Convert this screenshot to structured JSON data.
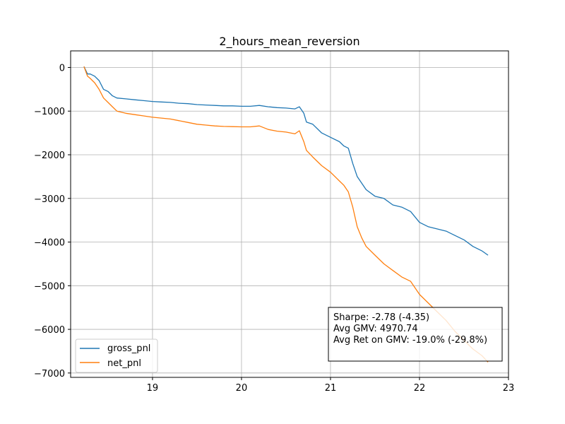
{
  "chart_data": {
    "type": "line",
    "title": "2_hours_mean_reversion",
    "xlabel": "",
    "ylabel": "",
    "xlim": [
      18.08,
      23.0
    ],
    "ylim": [
      -7100,
      380
    ],
    "x_ticks": [
      19,
      20,
      21,
      22,
      23
    ],
    "x_tick_labels": [
      "19",
      "20",
      "21",
      "22",
      "23"
    ],
    "y_ticks": [
      0,
      -1000,
      -2000,
      -3000,
      -4000,
      -5000,
      -6000,
      -7000
    ],
    "y_tick_labels": [
      "0",
      "−1000",
      "−2000",
      "−3000",
      "−4000",
      "−5000",
      "−6000",
      "−7000"
    ],
    "grid": true,
    "legend_position": "lower-left",
    "series": [
      {
        "name": "gross_pnl",
        "color": "#1f77b4",
        "x": [
          18.23,
          18.27,
          18.3,
          18.35,
          18.4,
          18.45,
          18.5,
          18.55,
          18.6,
          18.7,
          18.8,
          18.9,
          19.0,
          19.1,
          19.2,
          19.3,
          19.4,
          19.5,
          19.6,
          19.7,
          19.8,
          19.9,
          20.0,
          20.1,
          20.2,
          20.3,
          20.4,
          20.5,
          20.6,
          20.65,
          20.7,
          20.73,
          20.8,
          20.9,
          21.0,
          21.1,
          21.15,
          21.2,
          21.25,
          21.3,
          21.35,
          21.4,
          21.5,
          21.6,
          21.7,
          21.8,
          21.9,
          22.0,
          22.1,
          22.2,
          22.3,
          22.4,
          22.5,
          22.6,
          22.7,
          22.77
        ],
        "y": [
          20,
          -150,
          -150,
          -200,
          -300,
          -500,
          -550,
          -650,
          -700,
          -720,
          -740,
          -760,
          -780,
          -790,
          -800,
          -820,
          -830,
          -850,
          -860,
          -870,
          -880,
          -880,
          -890,
          -890,
          -870,
          -900,
          -920,
          -930,
          -950,
          -900,
          -1050,
          -1250,
          -1300,
          -1500,
          -1600,
          -1700,
          -1800,
          -1850,
          -2200,
          -2500,
          -2650,
          -2800,
          -2950,
          -3000,
          -3150,
          -3200,
          -3300,
          -3550,
          -3650,
          -3700,
          -3750,
          -3850,
          -3950,
          -4100,
          -4200,
          -4300
        ]
      },
      {
        "name": "net_pnl",
        "color": "#ff7f0e",
        "x": [
          18.23,
          18.27,
          18.3,
          18.35,
          18.4,
          18.45,
          18.5,
          18.55,
          18.6,
          18.7,
          18.8,
          18.9,
          19.0,
          19.1,
          19.2,
          19.3,
          19.4,
          19.5,
          19.6,
          19.7,
          19.8,
          19.9,
          20.0,
          20.1,
          20.2,
          20.3,
          20.4,
          20.5,
          20.6,
          20.65,
          20.7,
          20.73,
          20.8,
          20.9,
          21.0,
          21.1,
          21.15,
          21.2,
          21.25,
          21.3,
          21.35,
          21.4,
          21.5,
          21.6,
          21.7,
          21.8,
          21.9,
          22.0,
          22.1,
          22.2,
          22.3,
          22.4,
          22.5,
          22.6,
          22.7,
          22.77
        ],
        "y": [
          20,
          -200,
          -250,
          -350,
          -500,
          -700,
          -800,
          -900,
          -1000,
          -1050,
          -1080,
          -1110,
          -1140,
          -1160,
          -1180,
          -1220,
          -1260,
          -1300,
          -1320,
          -1340,
          -1350,
          -1355,
          -1360,
          -1360,
          -1340,
          -1420,
          -1460,
          -1480,
          -1520,
          -1450,
          -1700,
          -1900,
          -2050,
          -2250,
          -2400,
          -2600,
          -2700,
          -2850,
          -3200,
          -3650,
          -3900,
          -4100,
          -4300,
          -4500,
          -4650,
          -4800,
          -4900,
          -5200,
          -5400,
          -5600,
          -5800,
          -6050,
          -6250,
          -6450,
          -6600,
          -6750
        ]
      }
    ]
  },
  "stats_box": {
    "line1": "Sharpe: -2.78 (-4.35)",
    "line2": "Avg GMV: 4970.74",
    "line3": "Avg Ret on GMV: -19.0% (-29.8%)"
  }
}
